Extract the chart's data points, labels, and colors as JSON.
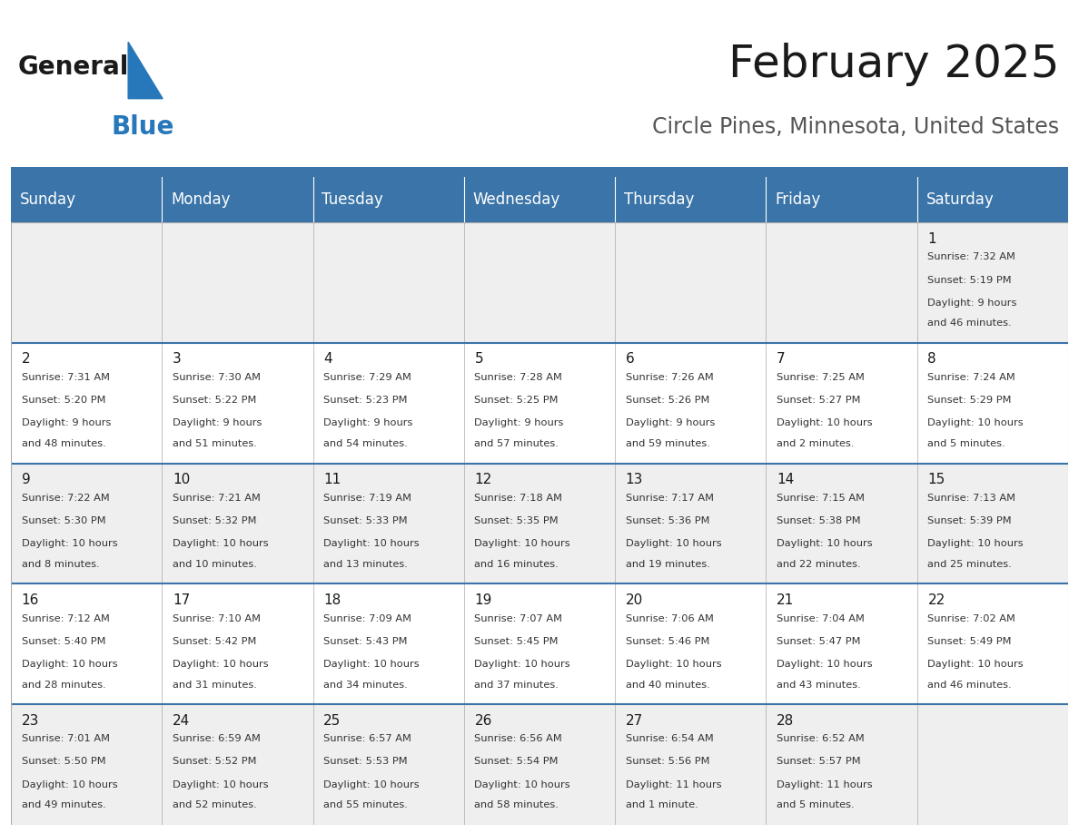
{
  "title": "February 2025",
  "subtitle": "Circle Pines, Minnesota, United States",
  "header_color": "#3A74A8",
  "header_text_color": "#FFFFFF",
  "cell_bg_odd": "#EFEFEF",
  "cell_bg_even": "#FFFFFF",
  "day_headers": [
    "Sunday",
    "Monday",
    "Tuesday",
    "Wednesday",
    "Thursday",
    "Friday",
    "Saturday"
  ],
  "days": [
    {
      "day": 1,
      "col": 6,
      "row": 0,
      "sunrise": "7:32 AM",
      "sunset": "5:19 PM",
      "daylight_line1": "Daylight: 9 hours",
      "daylight_line2": "and 46 minutes."
    },
    {
      "day": 2,
      "col": 0,
      "row": 1,
      "sunrise": "7:31 AM",
      "sunset": "5:20 PM",
      "daylight_line1": "Daylight: 9 hours",
      "daylight_line2": "and 48 minutes."
    },
    {
      "day": 3,
      "col": 1,
      "row": 1,
      "sunrise": "7:30 AM",
      "sunset": "5:22 PM",
      "daylight_line1": "Daylight: 9 hours",
      "daylight_line2": "and 51 minutes."
    },
    {
      "day": 4,
      "col": 2,
      "row": 1,
      "sunrise": "7:29 AM",
      "sunset": "5:23 PM",
      "daylight_line1": "Daylight: 9 hours",
      "daylight_line2": "and 54 minutes."
    },
    {
      "day": 5,
      "col": 3,
      "row": 1,
      "sunrise": "7:28 AM",
      "sunset": "5:25 PM",
      "daylight_line1": "Daylight: 9 hours",
      "daylight_line2": "and 57 minutes."
    },
    {
      "day": 6,
      "col": 4,
      "row": 1,
      "sunrise": "7:26 AM",
      "sunset": "5:26 PM",
      "daylight_line1": "Daylight: 9 hours",
      "daylight_line2": "and 59 minutes."
    },
    {
      "day": 7,
      "col": 5,
      "row": 1,
      "sunrise": "7:25 AM",
      "sunset": "5:27 PM",
      "daylight_line1": "Daylight: 10 hours",
      "daylight_line2": "and 2 minutes."
    },
    {
      "day": 8,
      "col": 6,
      "row": 1,
      "sunrise": "7:24 AM",
      "sunset": "5:29 PM",
      "daylight_line1": "Daylight: 10 hours",
      "daylight_line2": "and 5 minutes."
    },
    {
      "day": 9,
      "col": 0,
      "row": 2,
      "sunrise": "7:22 AM",
      "sunset": "5:30 PM",
      "daylight_line1": "Daylight: 10 hours",
      "daylight_line2": "and 8 minutes."
    },
    {
      "day": 10,
      "col": 1,
      "row": 2,
      "sunrise": "7:21 AM",
      "sunset": "5:32 PM",
      "daylight_line1": "Daylight: 10 hours",
      "daylight_line2": "and 10 minutes."
    },
    {
      "day": 11,
      "col": 2,
      "row": 2,
      "sunrise": "7:19 AM",
      "sunset": "5:33 PM",
      "daylight_line1": "Daylight: 10 hours",
      "daylight_line2": "and 13 minutes."
    },
    {
      "day": 12,
      "col": 3,
      "row": 2,
      "sunrise": "7:18 AM",
      "sunset": "5:35 PM",
      "daylight_line1": "Daylight: 10 hours",
      "daylight_line2": "and 16 minutes."
    },
    {
      "day": 13,
      "col": 4,
      "row": 2,
      "sunrise": "7:17 AM",
      "sunset": "5:36 PM",
      "daylight_line1": "Daylight: 10 hours",
      "daylight_line2": "and 19 minutes."
    },
    {
      "day": 14,
      "col": 5,
      "row": 2,
      "sunrise": "7:15 AM",
      "sunset": "5:38 PM",
      "daylight_line1": "Daylight: 10 hours",
      "daylight_line2": "and 22 minutes."
    },
    {
      "day": 15,
      "col": 6,
      "row": 2,
      "sunrise": "7:13 AM",
      "sunset": "5:39 PM",
      "daylight_line1": "Daylight: 10 hours",
      "daylight_line2": "and 25 minutes."
    },
    {
      "day": 16,
      "col": 0,
      "row": 3,
      "sunrise": "7:12 AM",
      "sunset": "5:40 PM",
      "daylight_line1": "Daylight: 10 hours",
      "daylight_line2": "and 28 minutes."
    },
    {
      "day": 17,
      "col": 1,
      "row": 3,
      "sunrise": "7:10 AM",
      "sunset": "5:42 PM",
      "daylight_line1": "Daylight: 10 hours",
      "daylight_line2": "and 31 minutes."
    },
    {
      "day": 18,
      "col": 2,
      "row": 3,
      "sunrise": "7:09 AM",
      "sunset": "5:43 PM",
      "daylight_line1": "Daylight: 10 hours",
      "daylight_line2": "and 34 minutes."
    },
    {
      "day": 19,
      "col": 3,
      "row": 3,
      "sunrise": "7:07 AM",
      "sunset": "5:45 PM",
      "daylight_line1": "Daylight: 10 hours",
      "daylight_line2": "and 37 minutes."
    },
    {
      "day": 20,
      "col": 4,
      "row": 3,
      "sunrise": "7:06 AM",
      "sunset": "5:46 PM",
      "daylight_line1": "Daylight: 10 hours",
      "daylight_line2": "and 40 minutes."
    },
    {
      "day": 21,
      "col": 5,
      "row": 3,
      "sunrise": "7:04 AM",
      "sunset": "5:47 PM",
      "daylight_line1": "Daylight: 10 hours",
      "daylight_line2": "and 43 minutes."
    },
    {
      "day": 22,
      "col": 6,
      "row": 3,
      "sunrise": "7:02 AM",
      "sunset": "5:49 PM",
      "daylight_line1": "Daylight: 10 hours",
      "daylight_line2": "and 46 minutes."
    },
    {
      "day": 23,
      "col": 0,
      "row": 4,
      "sunrise": "7:01 AM",
      "sunset": "5:50 PM",
      "daylight_line1": "Daylight: 10 hours",
      "daylight_line2": "and 49 minutes."
    },
    {
      "day": 24,
      "col": 1,
      "row": 4,
      "sunrise": "6:59 AM",
      "sunset": "5:52 PM",
      "daylight_line1": "Daylight: 10 hours",
      "daylight_line2": "and 52 minutes."
    },
    {
      "day": 25,
      "col": 2,
      "row": 4,
      "sunrise": "6:57 AM",
      "sunset": "5:53 PM",
      "daylight_line1": "Daylight: 10 hours",
      "daylight_line2": "and 55 minutes."
    },
    {
      "day": 26,
      "col": 3,
      "row": 4,
      "sunrise": "6:56 AM",
      "sunset": "5:54 PM",
      "daylight_line1": "Daylight: 10 hours",
      "daylight_line2": "and 58 minutes."
    },
    {
      "day": 27,
      "col": 4,
      "row": 4,
      "sunrise": "6:54 AM",
      "sunset": "5:56 PM",
      "daylight_line1": "Daylight: 11 hours",
      "daylight_line2": "and 1 minute."
    },
    {
      "day": 28,
      "col": 5,
      "row": 4,
      "sunrise": "6:52 AM",
      "sunset": "5:57 PM",
      "daylight_line1": "Daylight: 11 hours",
      "daylight_line2": "and 5 minutes."
    }
  ],
  "num_rows": 5,
  "num_cols": 7,
  "logo_general_color": "#1A1A1A",
  "logo_blue_color": "#2777BB",
  "title_color": "#1A1A1A",
  "subtitle_color": "#555555",
  "title_fontsize": 36,
  "subtitle_fontsize": 17,
  "header_fontsize": 12,
  "day_number_fontsize": 11,
  "cell_text_fontsize": 8.2,
  "divider_color": "#3A74A8",
  "border_color": "#AAAAAA",
  "week_divider_color": "#3A74A8"
}
